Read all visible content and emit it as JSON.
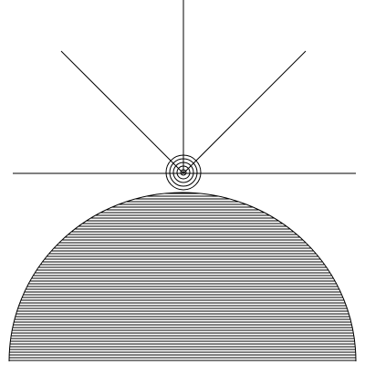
{
  "colors": {
    "background": "#ffffff",
    "stroke": "#000000"
  },
  "figure": {
    "hemisphere_fill": "horizontal-hatch",
    "concentric_ring_count": 5,
    "radiating_line_count": 3
  }
}
